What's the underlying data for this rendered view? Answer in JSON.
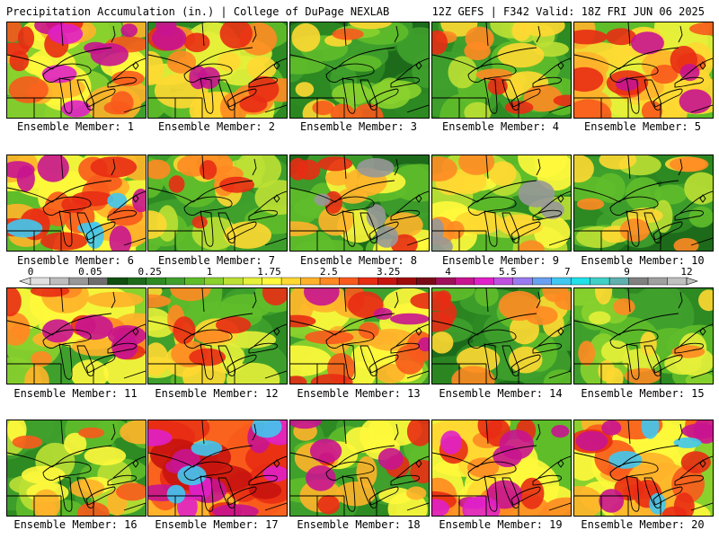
{
  "header": {
    "title": "Precipitation Accumulation (in.) | College of DuPage NEXLAB",
    "run_info": "12Z GEFS | F342 Valid: 18Z FRI JUN 06 2025"
  },
  "colorbar": {
    "ticks": [
      "0",
      "0.05",
      "0.25",
      "1",
      "1.75",
      "2.5",
      "3.25",
      "4",
      "5.5",
      "7",
      "9",
      "12"
    ],
    "colors": [
      "#e0e0e0",
      "#bdbdbd",
      "#989898",
      "#6e6e6e",
      "#0f4f0f",
      "#1d6b1a",
      "#2e8a22",
      "#3fa02c",
      "#5fbd2a",
      "#8ad12e",
      "#bde034",
      "#e5f03a",
      "#fff83c",
      "#ffd832",
      "#ffb22a",
      "#ff8a22",
      "#f85a1c",
      "#e82c14",
      "#c8140e",
      "#a00a0a",
      "#7a0a18",
      "#a0105a",
      "#c81490",
      "#e020c8",
      "#c050e0",
      "#9a7af0",
      "#6aa0f0",
      "#40c8f0",
      "#20e0e8",
      "#40d0c8",
      "#60b0b0",
      "#808080",
      "#a0a0a0",
      "#c0c0c0"
    ]
  },
  "panels": [
    {
      "label": "Ensemble Member: 1",
      "palette": [
        "#3fa02c",
        "#8ad12e",
        "#fff83c",
        "#ffb22a",
        "#f85a1c",
        "#e82c14",
        "#c81490",
        "#e020c8"
      ]
    },
    {
      "label": "Ensemble Member: 2",
      "palette": [
        "#2e8a22",
        "#5fbd2a",
        "#e5f03a",
        "#ffd832",
        "#ff8a22",
        "#e82c14",
        "#c81490"
      ]
    },
    {
      "label": "Ensemble Member: 3",
      "palette": [
        "#1d6b1a",
        "#2e8a22",
        "#3fa02c",
        "#5fbd2a",
        "#8ad12e",
        "#ffd832",
        "#f85a1c"
      ]
    },
    {
      "label": "Ensemble Member: 4",
      "palette": [
        "#2e8a22",
        "#3fa02c",
        "#5fbd2a",
        "#bde034",
        "#ffd832",
        "#ff8a22",
        "#e82c14"
      ]
    },
    {
      "label": "Ensemble Member: 5",
      "palette": [
        "#5fbd2a",
        "#e5f03a",
        "#ffd832",
        "#ffb22a",
        "#f85a1c",
        "#e82c14",
        "#c81490"
      ]
    },
    {
      "label": "Ensemble Member: 6",
      "palette": [
        "#5fbd2a",
        "#fff83c",
        "#ffb22a",
        "#f85a1c",
        "#e82c14",
        "#c81490",
        "#40c8f0"
      ]
    },
    {
      "label": "Ensemble Member: 7",
      "palette": [
        "#2e8a22",
        "#3fa02c",
        "#5fbd2a",
        "#bde034",
        "#ffd832",
        "#ff8a22",
        "#e82c14"
      ]
    },
    {
      "label": "Ensemble Member: 8",
      "palette": [
        "#1d6b1a",
        "#3fa02c",
        "#5fbd2a",
        "#fff83c",
        "#ffb22a",
        "#e82c14",
        "#989898"
      ]
    },
    {
      "label": "Ensemble Member: 9",
      "palette": [
        "#2e8a22",
        "#5fbd2a",
        "#bde034",
        "#fff83c",
        "#ffd832",
        "#ff8a22",
        "#989898"
      ]
    },
    {
      "label": "Ensemble Member: 10",
      "palette": [
        "#1d6b1a",
        "#2e8a22",
        "#3fa02c",
        "#5fbd2a",
        "#bde034",
        "#ffd832",
        "#ff8a22"
      ]
    },
    {
      "label": "Ensemble Member: 11",
      "palette": [
        "#3fa02c",
        "#8ad12e",
        "#fff83c",
        "#ffb22a",
        "#ff8a22",
        "#e82c14",
        "#c81490"
      ]
    },
    {
      "label": "Ensemble Member: 12",
      "palette": [
        "#2e8a22",
        "#3fa02c",
        "#5fbd2a",
        "#e5f03a",
        "#ffd832",
        "#ff8a22",
        "#e82c14"
      ]
    },
    {
      "label": "Ensemble Member: 13",
      "palette": [
        "#3fa02c",
        "#8ad12e",
        "#fff83c",
        "#ffb22a",
        "#f85a1c",
        "#e82c14",
        "#c81490"
      ]
    },
    {
      "label": "Ensemble Member: 14",
      "palette": [
        "#1d6b1a",
        "#2e8a22",
        "#3fa02c",
        "#5fbd2a",
        "#ffd832",
        "#ff8a22",
        "#e82c14"
      ]
    },
    {
      "label": "Ensemble Member: 15",
      "palette": [
        "#2e8a22",
        "#3fa02c",
        "#5fbd2a",
        "#8ad12e",
        "#e5f03a",
        "#ffd832",
        "#ff8a22"
      ]
    },
    {
      "label": "Ensemble Member: 16",
      "palette": [
        "#2e8a22",
        "#3fa02c",
        "#5fbd2a",
        "#bde034",
        "#fff83c",
        "#ffb22a",
        "#f85a1c"
      ]
    },
    {
      "label": "Ensemble Member: 17",
      "palette": [
        "#ffb22a",
        "#f85a1c",
        "#e82c14",
        "#c8140e",
        "#c81490",
        "#e020c8",
        "#40c8f0"
      ]
    },
    {
      "label": "Ensemble Member: 18",
      "palette": [
        "#2e8a22",
        "#3fa02c",
        "#5fbd2a",
        "#fff83c",
        "#ffb22a",
        "#e82c14",
        "#c81490"
      ]
    },
    {
      "label": "Ensemble Member: 19",
      "palette": [
        "#5fbd2a",
        "#fff83c",
        "#ffd832",
        "#ff8a22",
        "#e82c14",
        "#c81490",
        "#e020c8"
      ]
    },
    {
      "label": "Ensemble Member: 20",
      "palette": [
        "#8ad12e",
        "#fff83c",
        "#ffb22a",
        "#f85a1c",
        "#e82c14",
        "#c81490",
        "#40c8f0"
      ]
    }
  ]
}
